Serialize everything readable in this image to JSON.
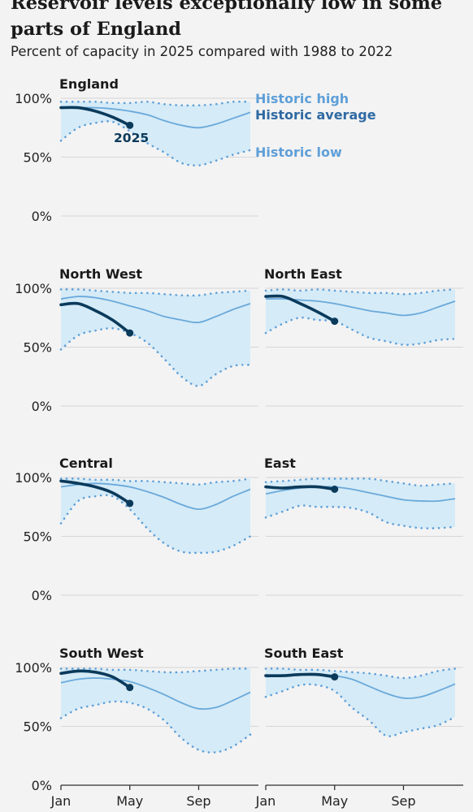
{
  "header": {
    "title": "Reservoir levels exceptionally low in some parts of England",
    "subtitle": "Percent of capacity in 2025 compared with 1988 to 2022"
  },
  "legend": {
    "high": "Historic high",
    "average": "Historic average",
    "low": "Historic low",
    "current": "2025"
  },
  "colors": {
    "band": "#d5ebf7",
    "high_low": "#5e9fd8",
    "average": "#6aa9da",
    "current": "#0b3a5b",
    "legend_average": "#2f6aa3",
    "grid": "#d6d6d6",
    "axis": "#333333",
    "background": "#f3f3f3"
  },
  "chart_data": {
    "type": "line",
    "y_ticks": [
      "100%",
      "50%",
      "0%"
    ],
    "y_tick_values": [
      100,
      50,
      0
    ],
    "ylim": [
      0,
      100
    ],
    "x_ticks": [
      "Jan",
      "May",
      "Sep"
    ],
    "x_months": [
      "Jan",
      "Feb",
      "Mar",
      "Apr",
      "May",
      "Jun",
      "Jul",
      "Aug",
      "Sep",
      "Oct",
      "Nov",
      "Dec"
    ],
    "panels": [
      {
        "name": "England",
        "high": [
          97,
          97,
          97,
          96,
          96,
          97,
          95,
          94,
          94,
          95,
          97,
          97
        ],
        "average": [
          92,
          92,
          92,
          91,
          89,
          86,
          81,
          77,
          75,
          78,
          83,
          88
        ],
        "low": [
          64,
          75,
          79,
          80,
          72,
          62,
          54,
          45,
          43,
          47,
          52,
          56
        ],
        "current": [
          92,
          92,
          89,
          84,
          77
        ]
      },
      {
        "name": "North West",
        "high": [
          99,
          99,
          98,
          97,
          96,
          96,
          95,
          94,
          94,
          96,
          97,
          98
        ],
        "average": [
          91,
          93,
          92,
          89,
          85,
          81,
          76,
          73,
          71,
          76,
          82,
          87
        ],
        "low": [
          48,
          60,
          64,
          66,
          62,
          54,
          40,
          25,
          17,
          27,
          34,
          35
        ],
        "current": [
          86,
          87,
          81,
          73,
          62
        ]
      },
      {
        "name": "North East",
        "high": [
          98,
          99,
          98,
          99,
          98,
          97,
          96,
          96,
          95,
          96,
          98,
          99
        ],
        "average": [
          91,
          91,
          90,
          89,
          87,
          84,
          81,
          79,
          77,
          79,
          84,
          89
        ],
        "low": [
          62,
          70,
          75,
          73,
          72,
          65,
          58,
          55,
          52,
          53,
          56,
          57
        ],
        "current": [
          93,
          93,
          87,
          80,
          72
        ]
      },
      {
        "name": "Central",
        "high": [
          99,
          99,
          98,
          98,
          97,
          97,
          96,
          95,
          94,
          96,
          97,
          99
        ],
        "average": [
          92,
          94,
          95,
          94,
          92,
          88,
          83,
          77,
          73,
          77,
          84,
          90
        ],
        "low": [
          61,
          80,
          84,
          84,
          73,
          57,
          44,
          37,
          36,
          37,
          42,
          50
        ],
        "current": [
          97,
          95,
          92,
          87,
          78
        ]
      },
      {
        "name": "East",
        "high": [
          96,
          97,
          98,
          99,
          99,
          99,
          99,
          97,
          95,
          93,
          94,
          95
        ],
        "average": [
          86,
          89,
          91,
          92,
          92,
          90,
          87,
          84,
          81,
          80,
          80,
          82
        ],
        "low": [
          66,
          71,
          76,
          75,
          75,
          74,
          70,
          62,
          59,
          57,
          57,
          58
        ],
        "current": [
          92,
          91,
          92,
          92,
          90
        ]
      },
      {
        "name": "South West",
        "high": [
          99,
          99,
          99,
          98,
          98,
          97,
          96,
          96,
          97,
          98,
          99,
          99
        ],
        "average": [
          87,
          90,
          91,
          90,
          88,
          83,
          77,
          70,
          65,
          66,
          72,
          79
        ],
        "low": [
          57,
          65,
          68,
          71,
          70,
          65,
          55,
          40,
          30,
          28,
          33,
          43
        ],
        "current": [
          95,
          97,
          96,
          92,
          83
        ]
      },
      {
        "name": "South East",
        "high": [
          99,
          99,
          98,
          98,
          97,
          96,
          95,
          93,
          91,
          93,
          97,
          99
        ],
        "average": [
          92,
          93,
          94,
          94,
          93,
          90,
          84,
          78,
          74,
          75,
          80,
          86
        ],
        "low": [
          75,
          80,
          85,
          85,
          80,
          66,
          55,
          42,
          45,
          48,
          51,
          58
        ],
        "current": [
          93,
          93,
          94,
          94,
          92
        ]
      }
    ]
  }
}
